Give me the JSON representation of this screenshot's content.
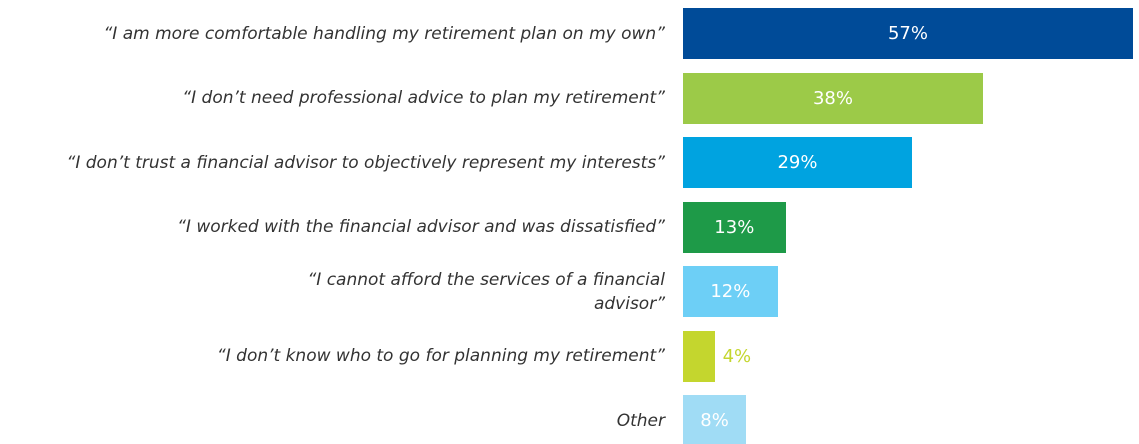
{
  "chart_data": {
    "type": "bar",
    "orientation": "horizontal",
    "categories": [
      "“I am more comfortable handling my retirement plan on my own”",
      "“I don’t need professional advice to plan my retirement”",
      "“I don’t trust a financial advisor to objectively represent my interests”",
      "“I worked with the financial advisor and was dissatisfied”",
      "“I cannot afford the services of a financial advisor”",
      "“I don’t know who to go for planning my retirement”",
      "Other"
    ],
    "values": [
      57,
      38,
      29,
      13,
      12,
      4,
      8
    ],
    "value_labels": [
      "57%",
      "38%",
      "29%",
      "13%",
      "12%",
      "4%",
      "8%"
    ],
    "colors": [
      "#004b98",
      "#9cca48",
      "#00a3e0",
      "#1e9a48",
      "#6dcff6",
      "#c4d62e",
      "#a0dcf5"
    ]
  }
}
